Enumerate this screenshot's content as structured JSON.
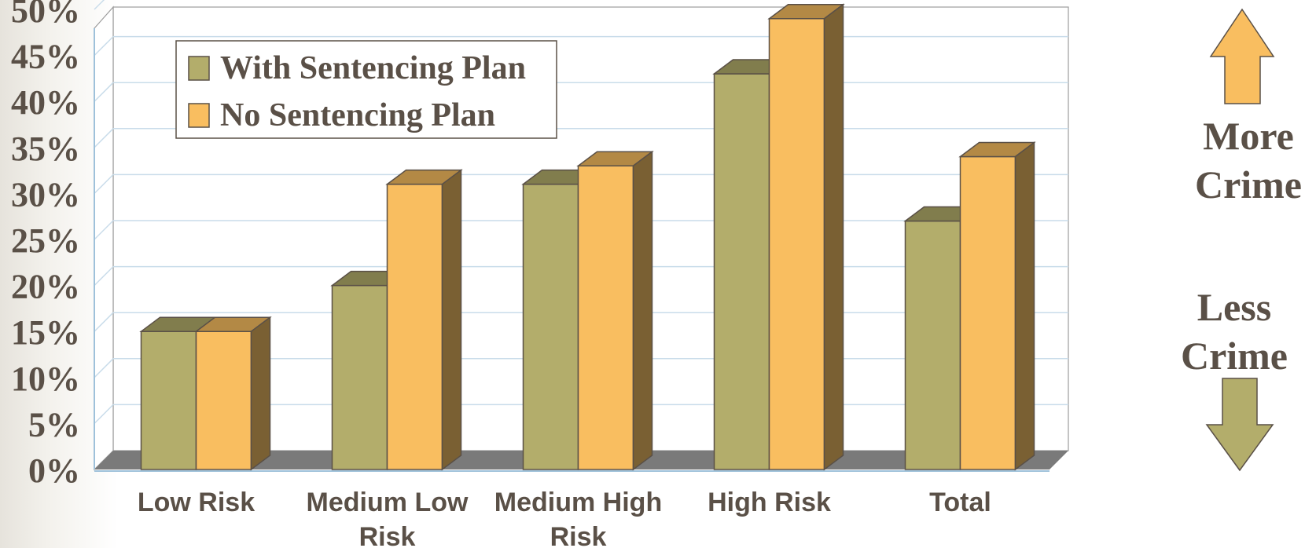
{
  "chart_data": {
    "type": "bar",
    "categories": [
      [
        "Low Risk"
      ],
      [
        "Medium Low",
        "Risk"
      ],
      [
        "Medium High",
        "Risk"
      ],
      [
        "High Risk"
      ],
      [
        "Total"
      ]
    ],
    "series": [
      {
        "name": "With Sentencing Plan",
        "color": "#b3ad6b",
        "values": [
          15,
          20,
          31,
          43,
          27
        ]
      },
      {
        "name": "No Sentencing Plan",
        "color": "#f9be60",
        "values": [
          15,
          31,
          33,
          49,
          34
        ]
      }
    ],
    "y_ticks": [
      "0%",
      "5%",
      "10%",
      "15%",
      "20%",
      "25%",
      "30%",
      "35%",
      "40%",
      "45%",
      "50%"
    ],
    "ylim": [
      0,
      50
    ],
    "grid": true,
    "legend_position": "top-left",
    "style": "3d-columns"
  },
  "annotations": {
    "more_crime": [
      "More",
      "Crime"
    ],
    "less_crime": [
      "Less",
      "Crime"
    ],
    "up_arrow_color": "#f9be60",
    "down_arrow_color": "#b3ad6b"
  },
  "colors": {
    "text": "#5a5047",
    "gridline": "#c9dcea",
    "floor": "#7a7a7a",
    "axis": "#9ec1da"
  }
}
